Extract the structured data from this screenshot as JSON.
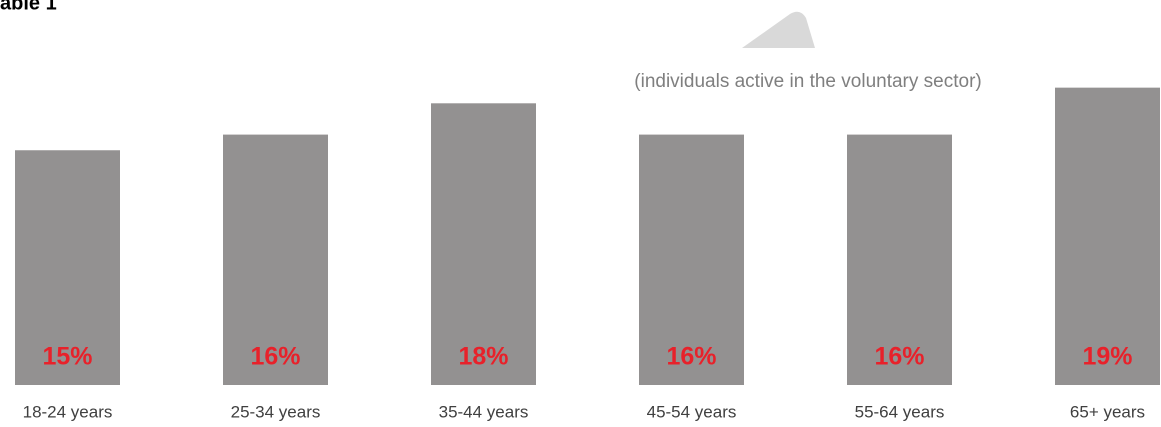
{
  "chart_data": {
    "type": "bar",
    "title": "able 1",
    "subtitle": "(individuals active in the voluntary sector)",
    "categories": [
      "18-24 years",
      "25-34 years",
      "35-44 years",
      "45-54 years",
      "55-64 years",
      "65+ years"
    ],
    "values": [
      15,
      16,
      18,
      16,
      16,
      19
    ],
    "value_labels": [
      "15%",
      "16%",
      "18%",
      "16%",
      "16%",
      "19%"
    ],
    "color": "#939191"
  }
}
